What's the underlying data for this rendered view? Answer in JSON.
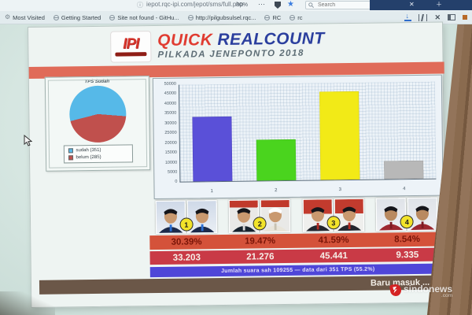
{
  "browser": {
    "url": "iepot.rqc-ipi.com/jepot/sms/full.php",
    "zoom_level": "80%",
    "search_placeholder": "Search",
    "bookmarks": [
      "Most Visited",
      "Getting Started",
      "Site not found - GitHu...",
      "http://pilgubsulsel.rqc...",
      "RC",
      "rc"
    ]
  },
  "page": {
    "logo_text": "IPI",
    "title_word1": "QUICK",
    "title_word2": "REALCOUNT",
    "subtitle": "PILKADA JENEPONTO 2018",
    "summary_text": "Jumlah suara sah 109255 — data dari 351 TPS (55.2%)",
    "ticker_text": "Baru masuk .... F"
  },
  "chart_data": [
    {
      "type": "pie",
      "title": "TPS Sudah",
      "labels": [
        "sudah (351)",
        "belum (285)"
      ],
      "values": [
        351,
        285
      ],
      "colors": [
        "#56b9e8",
        "#c0504d"
      ],
      "legend_position": "bottom"
    },
    {
      "type": "bar",
      "title": "",
      "xlabel": "",
      "ylabel": "",
      "categories": [
        "1",
        "2",
        "3",
        "4"
      ],
      "values": [
        33203,
        21276,
        45441,
        9335
      ],
      "colors": [
        "#5a50d8",
        "#4ad41e",
        "#f2ea17",
        "#b8b8b8"
      ],
      "ylim": [
        0,
        50000
      ],
      "yticks": [
        "50000",
        "45000",
        "40000",
        "35000",
        "30000",
        "25000",
        "20000",
        "15000",
        "10000",
        "5000",
        "0"
      ],
      "grid": true,
      "legend_position": "none"
    }
  ],
  "candidates": [
    {
      "number": "1",
      "percent": "30.39%",
      "votes": "33.203"
    },
    {
      "number": "2",
      "percent": "19.47%",
      "votes": "21.276"
    },
    {
      "number": "3",
      "percent": "41.59%",
      "votes": "45.441"
    },
    {
      "number": "4",
      "percent": "8.54%",
      "votes": "9.335"
    }
  ],
  "watermark": {
    "name": "sindonews",
    "tld": ".com"
  },
  "colors": {
    "band": "#e06b59",
    "percent_bar": "#d4523a",
    "votes_bar": "#c93a46",
    "summary_bar": "#4f46d8",
    "ticker_bar": "#6b5748",
    "title_red": "#e03c31",
    "title_blue": "#2b3f9e"
  }
}
